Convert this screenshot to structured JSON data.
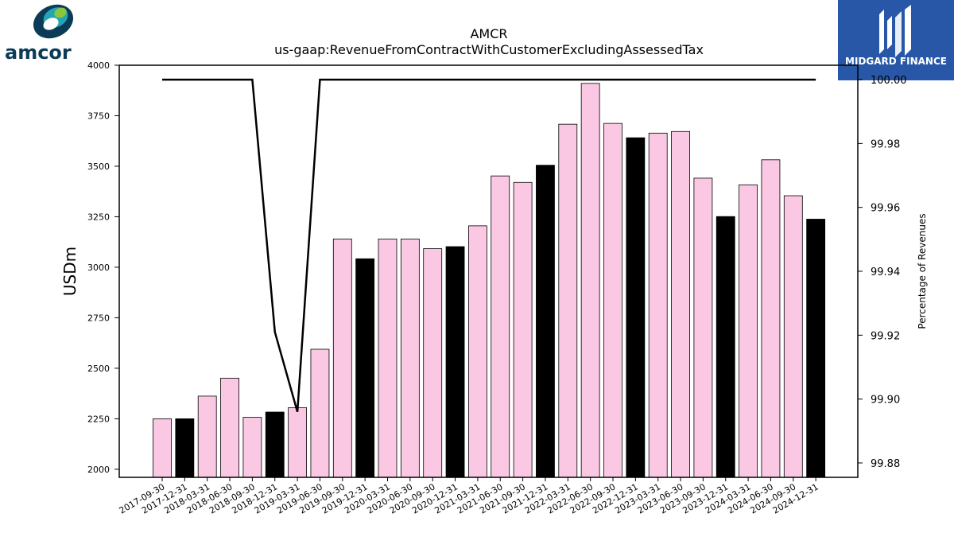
{
  "logos": {
    "left_brand": "amcor",
    "right_brand": "MIDGARD FINANCE",
    "colors": {
      "amcor_dark": "#0b3b57",
      "amcor_teal": "#22a6b3",
      "amcor_green": "#8cc63f",
      "midgard_blue": "#2757a6"
    }
  },
  "chart_data": {
    "type": "bar",
    "title": "AMCR",
    "subtitle": "us-gaap:RevenueFromContractWithCustomerExcludingAssessedTax",
    "ylabel": "USDm",
    "y2label": "Percentage of Revenues",
    "ylim": [
      1960,
      4000
    ],
    "y2lim": [
      99.8755,
      100.0045
    ],
    "yticks": [
      2000,
      2250,
      2500,
      2750,
      3000,
      3250,
      3500,
      3750,
      4000
    ],
    "y2ticks": [
      99.88,
      99.9,
      99.92,
      99.94,
      99.96,
      99.98,
      100.0
    ],
    "y2tick_labels": [
      "99.88",
      "99.90",
      "99.92",
      "99.94",
      "99.96",
      "99.98",
      "100.00"
    ],
    "categories": [
      "2017-09-30",
      "2017-12-31",
      "2018-03-31",
      "2018-06-30",
      "2018-09-30",
      "2018-12-31",
      "2019-03-31",
      "2019-06-30",
      "2019-09-30",
      "2019-12-31",
      "2020-03-31",
      "2020-06-30",
      "2020-09-30",
      "2020-12-31",
      "2021-03-31",
      "2021-06-30",
      "2021-09-30",
      "2021-12-31",
      "2022-03-31",
      "2022-06-30",
      "2022-09-30",
      "2022-12-31",
      "2023-03-31",
      "2023-06-30",
      "2023-09-30",
      "2023-12-31",
      "2024-03-31",
      "2024-06-30",
      "2024-09-30",
      "2024-12-31"
    ],
    "values": [
      2250,
      2250,
      2362,
      2451,
      2257,
      2283,
      2305,
      2594,
      3140,
      3042,
      3140,
      3140,
      3092,
      3102,
      3205,
      3452,
      3420,
      3505,
      3708,
      3910,
      3712,
      3641,
      3664,
      3672,
      3441,
      3251,
      3408,
      3532,
      3354,
      3238
    ],
    "bar_colors": [
      "#fbc8e3",
      "#000000",
      "#fbc8e3",
      "#fbc8e3",
      "#fbc8e3",
      "#000000",
      "#fbc8e3",
      "#fbc8e3",
      "#fbc8e3",
      "#000000",
      "#fbc8e3",
      "#fbc8e3",
      "#fbc8e3",
      "#000000",
      "#fbc8e3",
      "#fbc8e3",
      "#fbc8e3",
      "#000000",
      "#fbc8e3",
      "#fbc8e3",
      "#fbc8e3",
      "#000000",
      "#fbc8e3",
      "#fbc8e3",
      "#fbc8e3",
      "#000000",
      "#fbc8e3",
      "#fbc8e3",
      "#fbc8e3",
      "#000000"
    ],
    "line_values": [
      100.0,
      100.0,
      100.0,
      100.0,
      100.0,
      99.921,
      99.896,
      100.0,
      100.0,
      100.0,
      100.0,
      100.0,
      100.0,
      100.0,
      100.0,
      100.0,
      100.0,
      100.0,
      100.0,
      100.0,
      100.0,
      100.0,
      100.0,
      100.0,
      100.0,
      100.0,
      100.0,
      100.0,
      100.0,
      100.0
    ],
    "line_color": "#000000",
    "grid": false
  }
}
